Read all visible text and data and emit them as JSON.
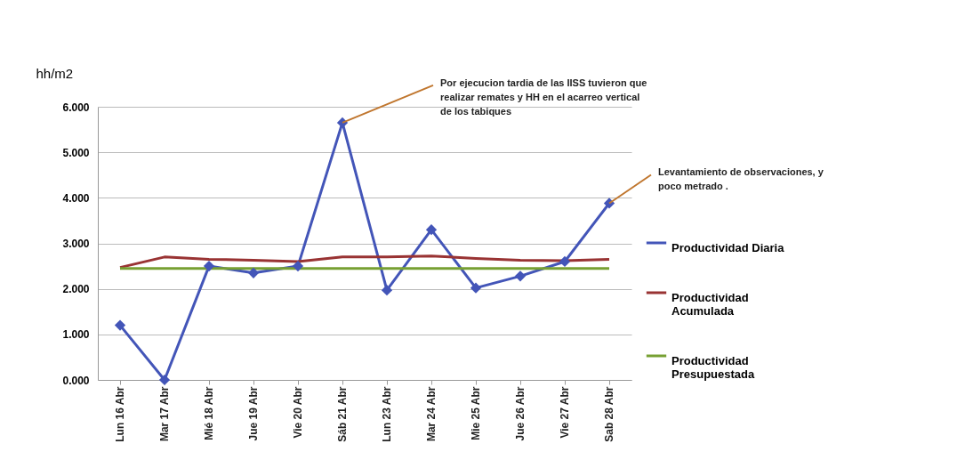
{
  "chart_data": {
    "type": "line",
    "ylabel": "hh/m2",
    "categories": [
      "Lun 16 Abr",
      "Mar 17 Abr",
      "Mié 18 Abr",
      "Jue 19 Abr",
      "Vie 20 Abr",
      "Sáb 21 Abr",
      "Lun 23 Abr",
      "Mar 24 Abr",
      "Mie 25 Abr",
      "Jue 26 Abr",
      "Vie 27 Abr",
      "Sab 28 Abr"
    ],
    "series": [
      {
        "name": "Productividad Diaria",
        "color": "#4355b8",
        "marker": "diamond",
        "values": [
          1.2,
          0,
          2.5,
          2.35,
          2.5,
          5.65,
          1.97,
          3.3,
          2.02,
          2.28,
          2.6,
          3.88
        ]
      },
      {
        "name": "Productividad Acumulada",
        "color": "#993333",
        "marker": "none",
        "values": [
          2.47,
          2.7,
          2.65,
          2.63,
          2.6,
          2.7,
          2.7,
          2.72,
          2.67,
          2.63,
          2.62,
          2.65
        ]
      },
      {
        "name": "Productividad Presupuestada",
        "color": "#77a033",
        "marker": "none",
        "values": [
          2.45,
          2.45,
          2.45,
          2.45,
          2.45,
          2.45,
          2.45,
          2.45,
          2.45,
          2.45,
          2.45,
          2.45
        ]
      }
    ],
    "ylim": [
      0,
      6
    ],
    "yticks": [
      {
        "value": 0,
        "label": "0.000"
      },
      {
        "value": 1,
        "label": "1.000"
      },
      {
        "value": 2,
        "label": "2.000"
      },
      {
        "value": 3,
        "label": "3.000"
      },
      {
        "value": 4,
        "label": "4.000"
      },
      {
        "value": 5,
        "label": "5.000"
      },
      {
        "value": 6,
        "label": "6.000"
      }
    ],
    "grid": "y",
    "legend": "right",
    "line_style": "solid",
    "annotations": [
      {
        "text": "Por ejecucion tardia de las IISS tuvieron que realizar remates y HH en el acarreo vertical de los tabiques",
        "x": "Sáb 21 Abr",
        "y": 5.65
      },
      {
        "text": "Levantamiento de observaciones, y poco metrado .",
        "x": "Sab 28 Abr",
        "y": 3.88
      }
    ]
  }
}
